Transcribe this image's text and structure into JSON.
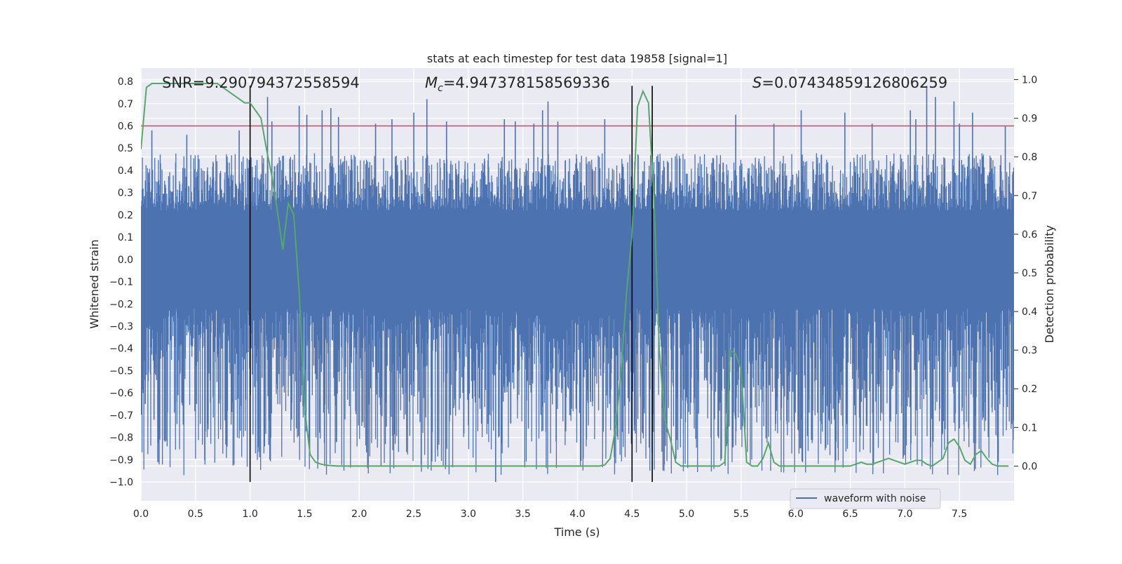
{
  "chart_data": {
    "type": "line",
    "title": "stats at each timestep for test data 19858 [signal=1]",
    "xlabel": "Time (s)",
    "ylabel_left": "Whitened strain",
    "ylabel_right": "Detection probability",
    "xlim": [
      0.0,
      8.0
    ],
    "ylim_left": [
      -1.085,
      0.86
    ],
    "ylim_right": [
      -0.09,
      1.03
    ],
    "grid": true,
    "legend_placement": "lower-right",
    "x_ticks": [
      "0.0",
      "0.5",
      "1.0",
      "1.5",
      "2.0",
      "2.5",
      "3.0",
      "3.5",
      "4.0",
      "4.5",
      "5.0",
      "5.5",
      "6.0",
      "6.5",
      "7.0",
      "7.5"
    ],
    "y_left_ticks": [
      "0.8",
      "0.7",
      "0.6",
      "0.5",
      "0.4",
      "0.3",
      "0.2",
      "0.1",
      "0.0",
      "−0.1",
      "−0.2",
      "−0.3",
      "−0.4",
      "−0.5",
      "−0.6",
      "−0.7",
      "−0.8",
      "−0.9",
      "−1.0"
    ],
    "y_right_ticks": [
      "1.0",
      "0.9",
      "0.8",
      "0.7",
      "0.6",
      "0.5",
      "0.4",
      "0.3",
      "0.2",
      "0.1",
      "0.0"
    ],
    "annotations": {
      "snr": "SNR=9.290794372558594",
      "mc_symbol": "M",
      "mc_sub": "c",
      "mc_value": "=4.947378158569336",
      "s_symbol": "S",
      "s_value": "=0.07434859126806259"
    },
    "threshold": {
      "y": 0.6,
      "color": "#c44e52"
    },
    "vertical_markers": [
      1.0,
      4.5,
      4.685
    ],
    "marker_ymax": 0.78,
    "series": [
      {
        "name": "waveform with noise",
        "axis": "left",
        "color": "#4c72b0",
        "envelope_typical": [
          -0.45,
          0.45
        ],
        "spikes": [
          [
            0.04,
            -0.65
          ],
          [
            0.1,
            0.58
          ],
          [
            0.12,
            -0.72
          ],
          [
            0.33,
            -0.64
          ],
          [
            0.42,
            0.56
          ],
          [
            0.73,
            -0.63
          ],
          [
            0.9,
            0.58
          ],
          [
            1.16,
            0.73
          ],
          [
            1.2,
            0.62
          ],
          [
            1.38,
            -0.72
          ],
          [
            1.45,
            0.69
          ],
          [
            1.5,
            -0.7
          ],
          [
            1.52,
            0.65
          ],
          [
            1.66,
            0.67
          ],
          [
            1.74,
            0.68
          ],
          [
            1.81,
            0.64
          ],
          [
            2.15,
            0.61
          ],
          [
            2.3,
            0.63
          ],
          [
            2.48,
            -0.61
          ],
          [
            2.5,
            0.66
          ],
          [
            2.62,
            0.72
          ],
          [
            2.66,
            -0.62
          ],
          [
            2.8,
            0.62
          ],
          [
            2.95,
            -0.6
          ],
          [
            3.25,
            -1.0
          ],
          [
            3.33,
            0.63
          ],
          [
            3.43,
            0.62
          ],
          [
            3.45,
            -0.63
          ],
          [
            3.55,
            -0.76
          ],
          [
            3.6,
            0.61
          ],
          [
            3.68,
            0.67
          ],
          [
            3.73,
            0.71
          ],
          [
            3.82,
            0.62
          ],
          [
            3.93,
            -0.7
          ],
          [
            4.02,
            -0.69
          ],
          [
            4.12,
            -0.64
          ],
          [
            4.25,
            0.63
          ],
          [
            4.3,
            -0.62
          ],
          [
            5.0,
            -0.62
          ],
          [
            5.3,
            -0.68
          ],
          [
            5.45,
            0.65
          ],
          [
            5.8,
            0.61
          ],
          [
            6.05,
            0.67
          ],
          [
            6.25,
            -0.61
          ],
          [
            6.45,
            0.66
          ],
          [
            6.6,
            -0.64
          ],
          [
            6.7,
            0.61
          ],
          [
            6.97,
            -0.66
          ],
          [
            7.05,
            0.67
          ],
          [
            7.1,
            0.63
          ],
          [
            7.2,
            0.78
          ],
          [
            7.28,
            0.73
          ],
          [
            7.35,
            -0.67
          ],
          [
            7.45,
            0.71
          ],
          [
            7.5,
            0.61
          ],
          [
            7.62,
            0.66
          ],
          [
            7.8,
            -0.66
          ],
          [
            7.92,
            0.6
          ]
        ]
      },
      {
        "name": "detection probability",
        "axis": "right",
        "color": "#55a868",
        "x": [
          0.0,
          0.05,
          0.1,
          0.2,
          0.3,
          0.4,
          0.5,
          0.6,
          0.7,
          0.75,
          0.8,
          0.85,
          0.9,
          0.95,
          1.0,
          1.05,
          1.1,
          1.15,
          1.2,
          1.25,
          1.3,
          1.35,
          1.4,
          1.45,
          1.5,
          1.55,
          1.6,
          1.65,
          1.7,
          1.8,
          1.9,
          2.0,
          2.2,
          2.5,
          2.8,
          3.0,
          3.5,
          4.0,
          4.2,
          4.25,
          4.3,
          4.35,
          4.4,
          4.45,
          4.5,
          4.55,
          4.6,
          4.65,
          4.7,
          4.75,
          4.8,
          4.85,
          4.9,
          4.95,
          5.0,
          5.1,
          5.2,
          5.3,
          5.35,
          5.4,
          5.45,
          5.5,
          5.55,
          5.6,
          5.65,
          5.7,
          5.75,
          5.8,
          5.85,
          5.9,
          6.0,
          6.2,
          6.4,
          6.5,
          6.55,
          6.6,
          6.65,
          6.7,
          6.75,
          6.8,
          6.85,
          6.9,
          6.95,
          7.0,
          7.05,
          7.1,
          7.15,
          7.2,
          7.25,
          7.3,
          7.35,
          7.4,
          7.45,
          7.5,
          7.55,
          7.6,
          7.65,
          7.7,
          7.75,
          7.8,
          7.85,
          7.9,
          7.95
        ],
        "y": [
          0.82,
          0.98,
          0.99,
          0.99,
          0.99,
          0.99,
          0.99,
          0.99,
          0.99,
          0.98,
          0.97,
          0.96,
          0.95,
          0.94,
          0.94,
          0.92,
          0.9,
          0.82,
          0.75,
          0.66,
          0.56,
          0.68,
          0.65,
          0.45,
          0.15,
          0.03,
          0.01,
          0.005,
          0.002,
          0.0,
          0.0,
          0.0,
          0.0,
          0.0,
          0.0,
          0.0,
          0.0,
          0.0,
          0.0,
          0.003,
          0.02,
          0.1,
          0.25,
          0.45,
          0.6,
          0.93,
          0.97,
          0.94,
          0.7,
          0.3,
          0.12,
          0.07,
          0.01,
          0.0,
          0.0,
          0.0,
          0.0,
          0.0,
          0.01,
          0.3,
          0.29,
          0.25,
          0.01,
          0.0,
          0.0,
          0.02,
          0.06,
          0.01,
          0.0,
          0.0,
          0.0,
          0.0,
          0.0,
          0.0,
          0.005,
          0.01,
          0.005,
          0.005,
          0.01,
          0.015,
          0.02,
          0.015,
          0.01,
          0.005,
          0.01,
          0.015,
          0.015,
          0.005,
          0.0,
          0.01,
          0.02,
          0.06,
          0.07,
          0.05,
          0.015,
          0.005,
          0.03,
          0.04,
          0.02,
          0.005,
          0.0,
          0.0,
          0.0
        ]
      }
    ]
  }
}
